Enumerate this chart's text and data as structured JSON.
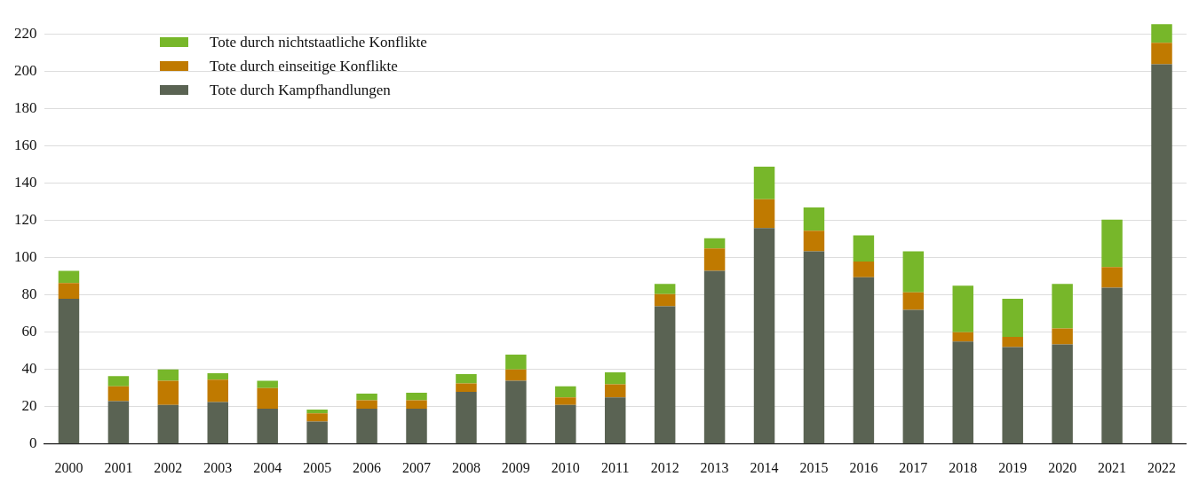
{
  "chart_data": {
    "type": "bar",
    "stacked": true,
    "categories": [
      "2000",
      "2001",
      "2002",
      "2003",
      "2004",
      "2005",
      "2006",
      "2007",
      "2008",
      "2009",
      "2010",
      "2011",
      "2012",
      "2013",
      "2014",
      "2015",
      "2016",
      "2017",
      "2018",
      "2019",
      "2020",
      "2021",
      "2022"
    ],
    "series": [
      {
        "name": "Tote durch Kampfhandlungen",
        "color": "#5a6353",
        "values": [
          78,
          23,
          21,
          22.5,
          19,
          12,
          19,
          19,
          28,
          34,
          21,
          25,
          74,
          93,
          116,
          103.5,
          89.5,
          72,
          55,
          52,
          53.5,
          84,
          204
        ]
      },
      {
        "name": "Tote durch einseitige Konflikte",
        "color": "#c07a00",
        "values": [
          8.5,
          8,
          13,
          12,
          11,
          4.5,
          4.5,
          4.5,
          4.5,
          6,
          4,
          7,
          6.5,
          12,
          15.5,
          11,
          8.5,
          9.5,
          5,
          5.5,
          8.5,
          11,
          11.5
        ]
      },
      {
        "name": "Tote durch nichtstaatliche Konflikte",
        "color": "#77b72a",
        "values": [
          6.5,
          5.5,
          6,
          3.5,
          4,
          2,
          3.5,
          4,
          5,
          8,
          6,
          6.5,
          5.5,
          5.5,
          17.5,
          12.5,
          14,
          22,
          25,
          20.5,
          24,
          25.5,
          10
        ]
      }
    ],
    "ylim": [
      0,
      226
    ],
    "yticks": [
      0,
      20,
      40,
      60,
      80,
      100,
      120,
      140,
      160,
      180,
      200,
      220
    ],
    "grid": "y",
    "legend": "top left"
  }
}
